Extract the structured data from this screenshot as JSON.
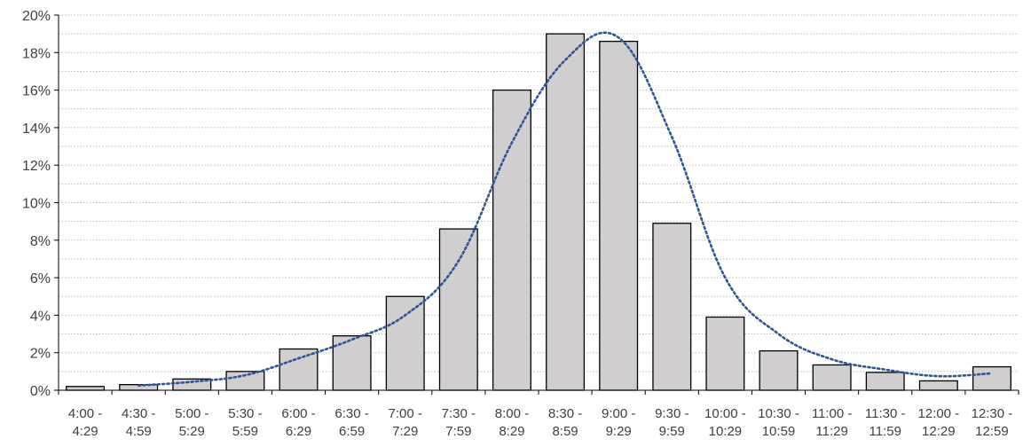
{
  "chart_data": {
    "type": "bar",
    "categories": [
      [
        "4:00 -",
        "4:29"
      ],
      [
        "4:30 -",
        "4:59"
      ],
      [
        "5:00 -",
        "5:29"
      ],
      [
        "5:30 -",
        "5:59"
      ],
      [
        "6:00 -",
        "6:29"
      ],
      [
        "6:30 -",
        "6:59"
      ],
      [
        "7:00 -",
        "7:29"
      ],
      [
        "7:30 -",
        "7:59"
      ],
      [
        "8:00 -",
        "8:29"
      ],
      [
        "8:30 -",
        "8:59"
      ],
      [
        "9:00 -",
        "9:29"
      ],
      [
        "9:30 -",
        "9:59"
      ],
      [
        "10:00 -",
        "10:29"
      ],
      [
        "10:30 -",
        "10:59"
      ],
      [
        "11:00 -",
        "11:29"
      ],
      [
        "11:30 -",
        "11:59"
      ],
      [
        "12:00 -",
        "12:29"
      ],
      [
        "12:30 -",
        "12:59"
      ]
    ],
    "series": [
      {
        "type": "bar",
        "values": [
          0.2,
          0.3,
          0.6,
          1.0,
          2.2,
          2.9,
          5.0,
          8.6,
          16.0,
          19.0,
          18.6,
          8.9,
          3.9,
          2.1,
          1.35,
          0.95,
          0.5,
          1.25
        ]
      },
      {
        "type": "line",
        "style": "dotted",
        "values": [
          null,
          0.25,
          0.45,
          0.8,
          1.7,
          2.7,
          4.0,
          6.9,
          13.2,
          17.6,
          18.8,
          13.5,
          6.0,
          3.0,
          1.65,
          1.1,
          0.75,
          0.9
        ]
      }
    ],
    "title": "",
    "xlabel": "",
    "ylabel": "",
    "ylim": [
      0,
      20
    ],
    "yticks": [
      "0%",
      "2%",
      "4%",
      "6%",
      "8%",
      "10%",
      "12%",
      "14%",
      "16%",
      "18%",
      "20%"
    ],
    "grid": true,
    "legend": "none",
    "colors": {
      "bar_fill": "#d0cece",
      "bar_stroke": "#000000",
      "trend_line": "#2f5597",
      "gridline": "#bfbfbf",
      "axis": "#000000",
      "text": "#404040"
    }
  }
}
